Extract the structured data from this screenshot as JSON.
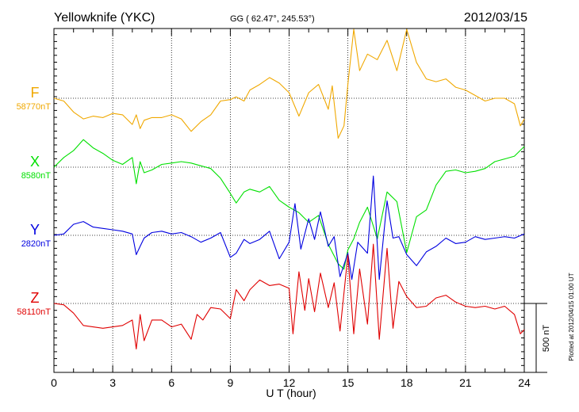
{
  "header": {
    "station": "Yellowknife (YKC)",
    "coordinates": "GG ( 62.47°, 245.53°)",
    "date": "2012/03/15"
  },
  "footer": {
    "plotted_note": "Plotted at 2012/04/15 01:00 UT",
    "scale_label": "500 nT"
  },
  "chart_data": {
    "type": "line",
    "xlabel": "U T (hour)",
    "xlim": [
      0,
      24
    ],
    "xticks": [
      0,
      3,
      6,
      9,
      12,
      15,
      18,
      21,
      24
    ],
    "scale_bar_nT": 500,
    "grid": "dotted",
    "series": [
      {
        "name": "F",
        "baseline": "58770nT",
        "color": "#f0a800",
        "x": [
          0,
          0.5,
          1.0,
          1.5,
          2.0,
          2.5,
          3.0,
          3.5,
          4.0,
          4.2,
          4.4,
          4.6,
          5.0,
          5.5,
          6.0,
          6.5,
          7.0,
          7.5,
          8.0,
          8.5,
          9.0,
          9.3,
          9.7,
          10.0,
          10.5,
          11.0,
          11.5,
          12.0,
          12.5,
          13.0,
          13.5,
          14.0,
          14.2,
          14.5,
          14.8,
          15.0,
          15.3,
          15.6,
          16.0,
          16.5,
          17.0,
          17.5,
          18.0,
          18.5,
          19.0,
          19.5,
          20.0,
          20.5,
          21.0,
          21.5,
          22.0,
          22.5,
          23.0,
          23.5,
          23.8,
          24.0
        ],
        "values": [
          0,
          -20,
          -100,
          -150,
          -130,
          -140,
          -110,
          -120,
          -190,
          -120,
          -220,
          -160,
          -140,
          -140,
          -120,
          -150,
          -240,
          -170,
          -120,
          -20,
          -10,
          10,
          -20,
          60,
          100,
          150,
          110,
          40,
          -130,
          40,
          100,
          -80,
          90,
          -290,
          -200,
          100,
          520,
          200,
          320,
          280,
          420,
          200,
          500,
          260,
          140,
          120,
          140,
          80,
          60,
          20,
          -20,
          0,
          0,
          -40,
          -200,
          -150
        ]
      },
      {
        "name": "X",
        "baseline": "8580nT",
        "color": "#00e000",
        "x": [
          0,
          0.5,
          1.0,
          1.5,
          2.0,
          2.5,
          3.0,
          3.5,
          4.0,
          4.2,
          4.4,
          4.6,
          5.0,
          5.5,
          6.0,
          6.5,
          7.0,
          7.5,
          8.0,
          8.5,
          9.0,
          9.3,
          9.7,
          10.0,
          10.5,
          11.0,
          11.5,
          12.0,
          12.5,
          13.0,
          13.5,
          14.0,
          14.5,
          14.8,
          15.0,
          15.3,
          15.6,
          16.0,
          16.5,
          17.0,
          17.5,
          18.0,
          18.5,
          19.0,
          19.5,
          20.0,
          20.5,
          21.0,
          21.5,
          22.0,
          22.5,
          23.0,
          23.5,
          24.0
        ],
        "values": [
          0,
          70,
          120,
          200,
          140,
          100,
          50,
          20,
          70,
          -120,
          40,
          -40,
          -20,
          20,
          30,
          40,
          30,
          10,
          -10,
          -80,
          -190,
          -260,
          -180,
          -160,
          -180,
          -140,
          -240,
          -290,
          -330,
          -400,
          -350,
          -560,
          -700,
          -740,
          -600,
          -520,
          -400,
          -290,
          -520,
          -180,
          -250,
          -620,
          -360,
          -310,
          -130,
          -30,
          -20,
          -40,
          -30,
          -10,
          40,
          60,
          80,
          150
        ]
      },
      {
        "name": "Y",
        "baseline": "2820nT",
        "color": "#0000e0",
        "x": [
          0,
          0.5,
          1.0,
          1.5,
          2.0,
          2.5,
          3.0,
          3.5,
          4.0,
          4.2,
          4.4,
          4.6,
          5.0,
          5.5,
          6.0,
          6.5,
          7.0,
          7.5,
          8.0,
          8.5,
          9.0,
          9.3,
          9.7,
          10.0,
          10.5,
          11.0,
          11.5,
          12.0,
          12.3,
          12.6,
          13.0,
          13.3,
          13.6,
          14.0,
          14.3,
          14.6,
          15.0,
          15.2,
          15.5,
          16.0,
          16.3,
          16.6,
          17.0,
          17.3,
          17.6,
          18.0,
          18.5,
          19.0,
          19.5,
          20.0,
          20.5,
          21.0,
          21.5,
          22.0,
          22.5,
          23.0,
          23.5,
          24.0
        ],
        "values": [
          0,
          10,
          80,
          100,
          60,
          50,
          40,
          30,
          10,
          -140,
          -80,
          -20,
          20,
          30,
          10,
          20,
          -10,
          -50,
          -20,
          20,
          -160,
          -130,
          -30,
          -60,
          -30,
          30,
          -170,
          -50,
          230,
          -100,
          120,
          -30,
          170,
          -80,
          -10,
          -300,
          -130,
          -320,
          -50,
          -130,
          430,
          -320,
          250,
          -20,
          -10,
          -140,
          -220,
          -120,
          -80,
          -20,
          -60,
          -50,
          -10,
          -30,
          -20,
          -10,
          -20,
          10
        ]
      },
      {
        "name": "Z",
        "baseline": "58110nT",
        "color": "#e00000",
        "x": [
          0,
          0.5,
          1.0,
          1.5,
          2.0,
          2.5,
          3.0,
          3.5,
          4.0,
          4.2,
          4.4,
          4.6,
          5.0,
          5.5,
          6.0,
          6.5,
          7.0,
          7.3,
          7.6,
          8.0,
          8.5,
          9.0,
          9.3,
          9.7,
          10.0,
          10.5,
          11.0,
          11.5,
          12.0,
          12.2,
          12.5,
          12.8,
          13.0,
          13.3,
          13.6,
          14.0,
          14.3,
          14.6,
          15.0,
          15.3,
          15.6,
          16.0,
          16.3,
          16.6,
          17.0,
          17.3,
          17.6,
          18.0,
          18.5,
          19.0,
          19.5,
          20.0,
          20.5,
          21.0,
          21.5,
          22.0,
          22.5,
          23.0,
          23.5,
          23.8,
          24.0
        ],
        "values": [
          0,
          -10,
          -70,
          -160,
          -170,
          -180,
          -170,
          -160,
          -120,
          -330,
          -80,
          -270,
          -120,
          -120,
          -170,
          -150,
          -260,
          -80,
          -120,
          -30,
          -40,
          -110,
          100,
          20,
          100,
          170,
          130,
          140,
          110,
          -220,
          230,
          -50,
          180,
          -60,
          220,
          -30,
          150,
          -200,
          350,
          -220,
          250,
          -150,
          430,
          -260,
          400,
          -180,
          160,
          50,
          -30,
          -20,
          40,
          60,
          10,
          -20,
          -30,
          -20,
          -40,
          -20,
          -80,
          -220,
          -190
        ]
      }
    ]
  }
}
